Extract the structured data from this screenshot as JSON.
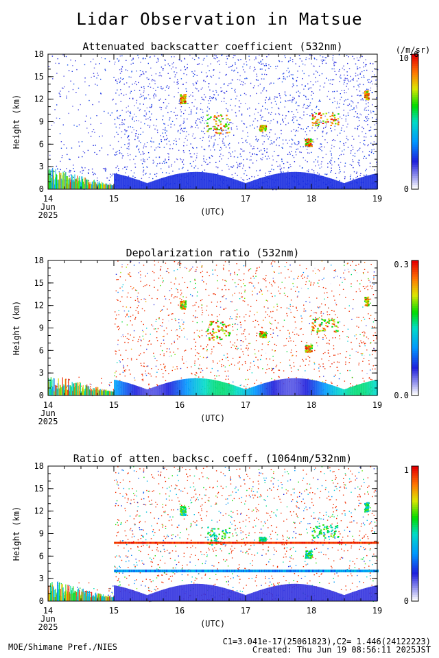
{
  "page_title": "Lidar Observation in Matsue",
  "footer": {
    "left": "MOE/Shimane Pref./NIES",
    "calib": "C1=3.041e-17(25061823),C2= 1.446(24122223)",
    "created": "Created: Thu Jun 19 08:56:11 2025JST"
  },
  "chart_data": [
    {
      "type": "heatmap",
      "title": "Attenuated backscatter coefficient (532nm)",
      "ylabel": "Height (km)",
      "xlabel": "(UTC)",
      "x_ticks": [
        "14",
        "15",
        "16",
        "17",
        "18",
        "19"
      ],
      "x_date_label": [
        "Jun",
        "2025"
      ],
      "y_ticks": [
        "0",
        "3",
        "6",
        "9",
        "12",
        "15",
        "18"
      ],
      "ylim": [
        0,
        18
      ],
      "colorbar": {
        "min": "0",
        "max": "10",
        "unit": "(/m/sr)",
        "exp": "-6"
      }
    },
    {
      "type": "heatmap",
      "title": "Depolarization ratio (532nm)",
      "ylabel": "Height (km)",
      "xlabel": "(UTC)",
      "x_ticks": [
        "14",
        "15",
        "16",
        "17",
        "18",
        "19"
      ],
      "x_date_label": [
        "Jun",
        "2025"
      ],
      "y_ticks": [
        "0",
        "3",
        "6",
        "9",
        "12",
        "15",
        "18"
      ],
      "ylim": [
        0,
        18
      ],
      "colorbar": {
        "min": "0.0",
        "max": "0.3"
      }
    },
    {
      "type": "heatmap",
      "title": "Ratio of atten. backsc. coeff. (1064nm/532nm)",
      "ylabel": "Height (km)",
      "xlabel": "(UTC)",
      "x_ticks": [
        "14",
        "15",
        "16",
        "17",
        "18",
        "19"
      ],
      "x_date_label": [
        "Jun",
        "2025"
      ],
      "y_ticks": [
        "0",
        "3",
        "6",
        "9",
        "12",
        "15",
        "18"
      ],
      "ylim": [
        0,
        18
      ],
      "colorbar": {
        "min": "0",
        "max": "1"
      }
    }
  ]
}
